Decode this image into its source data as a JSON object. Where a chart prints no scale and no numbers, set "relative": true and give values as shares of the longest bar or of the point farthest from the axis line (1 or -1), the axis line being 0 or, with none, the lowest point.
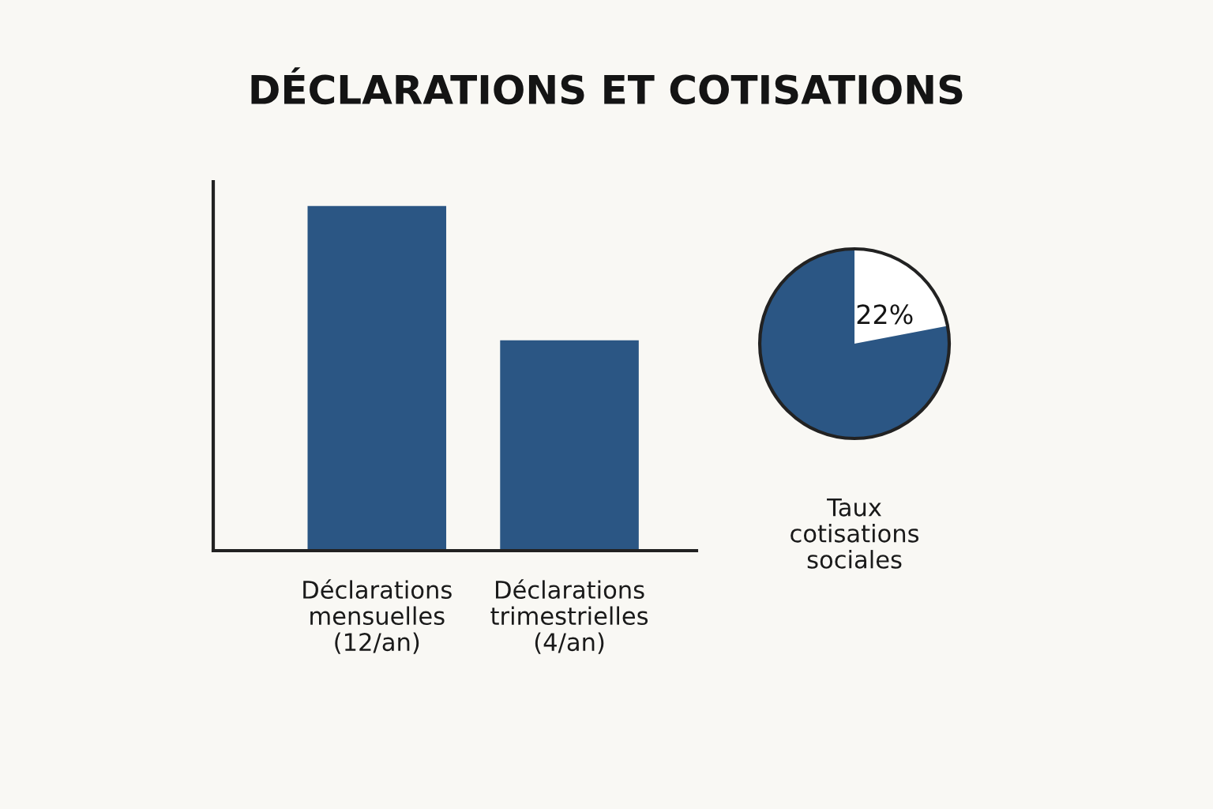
{
  "chart_data": [
    {
      "type": "bar",
      "title": "DÉCLARATIONS ET COTISATIONS",
      "relative": true,
      "categories": [
        "Déclarations\nmensuelles\n(12/an)",
        "Déclarations\ntrimestrielles\n(4/an)"
      ],
      "values": [
        1,
        0.61
      ],
      "color": "#2b5684",
      "legend": false
    },
    {
      "type": "pie",
      "title": "Taux\ncotisations\nsociales",
      "categories": [
        null,
        null
      ],
      "values": [
        22,
        78
      ],
      "colors": [
        "#ffffff",
        "#2b5684"
      ],
      "value_labels": [
        "22%",
        null
      ],
      "legend": false
    }
  ]
}
